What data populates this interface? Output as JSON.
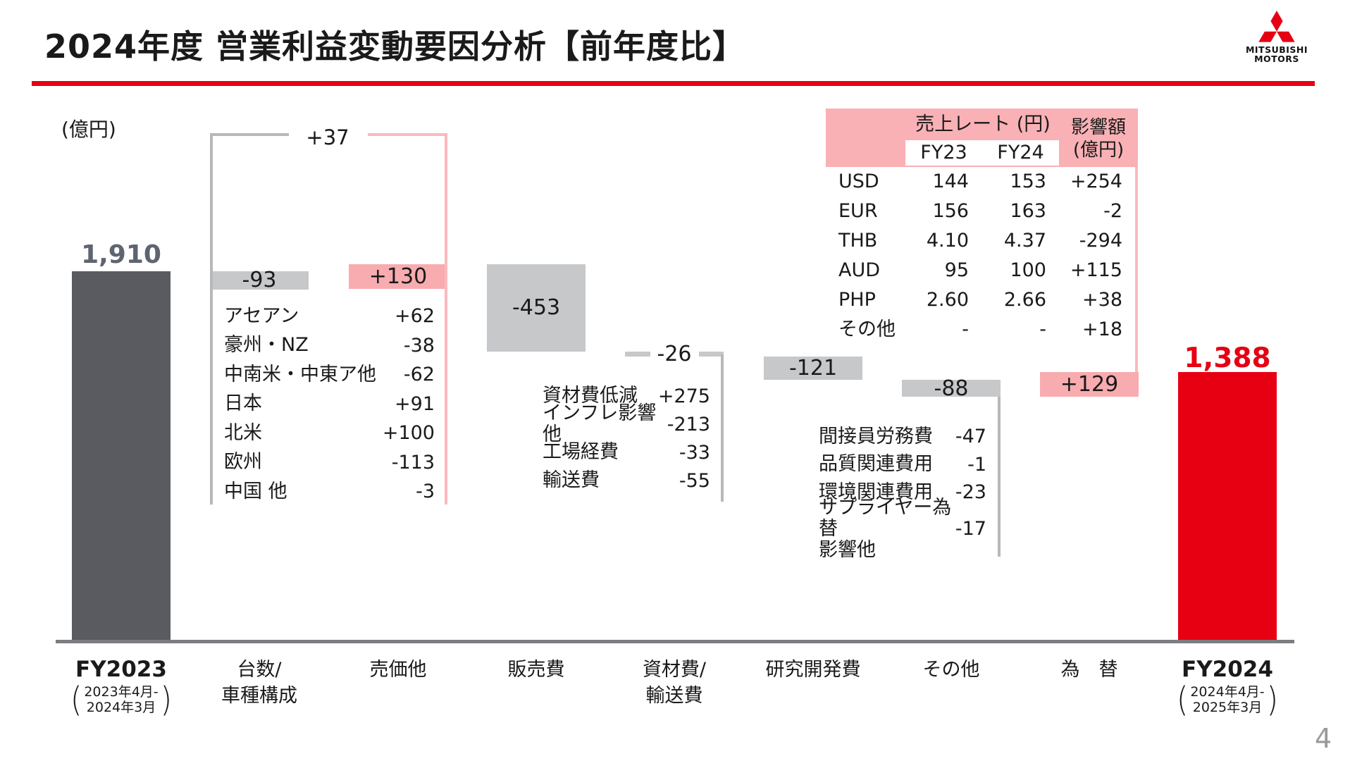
{
  "slide": {
    "title": "2024年度 営業利益変動要因分析【前年度比】",
    "unit_label": "(億円)",
    "page_number": "4"
  },
  "logo": {
    "brand_line1": "MITSUBISHI",
    "brand_line2": "MOTORS"
  },
  "colors": {
    "red": "#e60012",
    "bar_dark": "#595b60",
    "gray_box": "#c7c8ca",
    "gray_line": "#b7b8ba",
    "pink_box": "#f8acb0",
    "pink_line": "#f9babd",
    "pink_header": "#f9b1b5",
    "start_label": "#5d6570",
    "axis_line": "#7b7d80",
    "page_num": "#97999b"
  },
  "chart_data": {
    "type": "waterfall",
    "title": "2024年度 営業利益変動要因分析【前年度比】",
    "unit": "億円",
    "ylabel": "(億円)",
    "sub_paren": [
      "(",
      ")"
    ],
    "steps": [
      {
        "name": "FY2023",
        "kind": "start",
        "value": 1910,
        "label": "1,910",
        "axis_label": "FY2023",
        "sub_lines": [
          "2023年4月-",
          "2024年3月"
        ]
      },
      {
        "name": "台数/車種構成",
        "kind": "delta",
        "value": -93,
        "label": "-93",
        "axis_label": "台数/\n車種構成"
      },
      {
        "name": "売価他",
        "kind": "delta",
        "value": 130,
        "label": "+130",
        "axis_label": "売価他"
      },
      {
        "name": "販売費",
        "kind": "delta",
        "value": -453,
        "label": "-453",
        "axis_label": "販売費"
      },
      {
        "name": "資材費/輸送費",
        "kind": "thin",
        "value": -26,
        "label": "-26",
        "axis_label": "資材費/\n輸送費"
      },
      {
        "name": "研究開発費",
        "kind": "delta",
        "value": -121,
        "label": "-121",
        "axis_label": "研究開発費"
      },
      {
        "name": "その他",
        "kind": "delta",
        "value": -88,
        "label": "-88",
        "axis_label": "その他"
      },
      {
        "name": "為替",
        "kind": "delta",
        "value": 129,
        "label": "+129",
        "axis_label": "為　替"
      },
      {
        "name": "FY2024",
        "kind": "end",
        "value": 1388,
        "label": "1,388",
        "axis_label": "FY2024",
        "sub_lines": [
          "2024年4月-",
          "2025年3月"
        ]
      }
    ],
    "group_bracket": {
      "label": "+37",
      "value": 37,
      "covers": [
        "台数/車種構成",
        "売価他"
      ]
    },
    "breakdowns": {
      "sales_price": {
        "anchor": "売価他",
        "rows": [
          {
            "label": "アセアン",
            "value": "+62"
          },
          {
            "label": "豪州・NZ",
            "value": "-38"
          },
          {
            "label": "中南米・中東ア他",
            "value": "-62"
          },
          {
            "label": "日本",
            "value": "+91"
          },
          {
            "label": "北米",
            "value": "+100"
          },
          {
            "label": "欧州",
            "value": "-113"
          },
          {
            "label": "中国 他",
            "value": "-3"
          }
        ]
      },
      "material_logistics": {
        "anchor": "資材費/輸送費",
        "rows": [
          {
            "label": "資材費低減",
            "value": "+275"
          },
          {
            "label": "インフレ影響他",
            "value": "-213"
          },
          {
            "label": "工場経費",
            "value": "-33"
          },
          {
            "label": "輸送費",
            "value": "-55"
          }
        ]
      },
      "others": {
        "anchor": "その他",
        "rows": [
          {
            "label": "間接員労務費",
            "value": "-47"
          },
          {
            "label": "品質関連費用",
            "value": "-1"
          },
          {
            "label": "環境関連費用",
            "value": "-23"
          },
          {
            "label": "サプライヤー為替\n影響他",
            "value": "-17"
          }
        ]
      }
    },
    "fx_table": {
      "rate_header": "売上レート (円)",
      "impact_header_lines": [
        "影響額",
        "(億円)"
      ],
      "col_headers": [
        "FY23",
        "FY24"
      ],
      "rows": [
        {
          "currency": "USD",
          "fy23": "144",
          "fy24": "153",
          "impact": "+254"
        },
        {
          "currency": "EUR",
          "fy23": "156",
          "fy24": "163",
          "impact": "-2"
        },
        {
          "currency": "THB",
          "fy23": "4.10",
          "fy24": "4.37",
          "impact": "-294"
        },
        {
          "currency": "AUD",
          "fy23": "95",
          "fy24": "100",
          "impact": "+115"
        },
        {
          "currency": "PHP",
          "fy23": "2.60",
          "fy24": "2.66",
          "impact": "+38"
        },
        {
          "currency": "その他",
          "fy23": "-",
          "fy24": "-",
          "impact": "+18"
        }
      ]
    }
  }
}
